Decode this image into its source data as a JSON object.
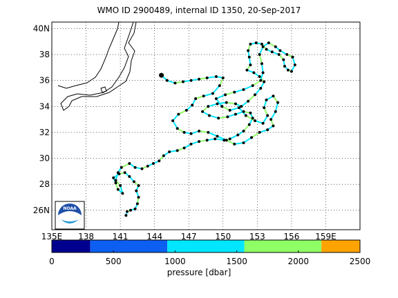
{
  "title": "WMO ID 2900489, internal ID 1350, 20-Sep-2017",
  "map": {
    "lon_range": [
      135,
      162
    ],
    "lat_range": [
      24.5,
      40.5
    ],
    "lon_ticks": [
      {
        "v": 135,
        "label": "135E"
      },
      {
        "v": 138,
        "label": "138"
      },
      {
        "v": 141,
        "label": "141"
      },
      {
        "v": 144,
        "label": "144"
      },
      {
        "v": 147,
        "label": "147"
      },
      {
        "v": 150,
        "label": "150"
      },
      {
        "v": 153,
        "label": "153"
      },
      {
        "v": 156,
        "label": "156"
      },
      {
        "v": 159,
        "label": "159E"
      }
    ],
    "lat_ticks": [
      {
        "v": 26,
        "label": "26N"
      },
      {
        "v": 28,
        "label": "28"
      },
      {
        "v": 30,
        "label": "30"
      },
      {
        "v": 32,
        "label": "32"
      },
      {
        "v": 34,
        "label": "34"
      },
      {
        "v": 36,
        "label": "36"
      },
      {
        "v": 38,
        "label": "38"
      },
      {
        "v": 40,
        "label": "40N"
      }
    ],
    "grid": true,
    "logo": "NOAA"
  },
  "colorbar": {
    "label": "pressure [dbar]",
    "range": [
      0,
      2500
    ],
    "tick_values": [
      0,
      500,
      1000,
      1500,
      2000,
      2500
    ],
    "segments": [
      {
        "from": 0,
        "to": 312,
        "color": "#00008f"
      },
      {
        "from": 312,
        "to": 937,
        "color": "#0d5ff2"
      },
      {
        "from": 937,
        "to": 1562,
        "color": "#00e6ff"
      },
      {
        "from": 1562,
        "to": 2187,
        "color": "#8fff66"
      },
      {
        "from": 2187,
        "to": 2500,
        "color": "#ffa300"
      }
    ]
  },
  "colors": {
    "track_primary": "#00e6ff",
    "track_secondary": "#8fff66",
    "marker": "#000000",
    "coast": "#000000"
  },
  "chart_data": {
    "type": "scatter",
    "x_axis": "longitude",
    "y_axis": "latitude",
    "xlim": [
      135,
      162
    ],
    "ylim": [
      24.5,
      40.5
    ],
    "track": [
      [
        141.5,
        25.6
      ],
      [
        141.6,
        25.9
      ],
      [
        141.9,
        26.0
      ],
      [
        142.3,
        26.1
      ],
      [
        142.5,
        26.5
      ],
      [
        142.6,
        27.0
      ],
      [
        142.4,
        27.5
      ],
      [
        142.6,
        27.9
      ],
      [
        142.2,
        28.2
      ],
      [
        141.8,
        28.6
      ],
      [
        141.4,
        28.9
      ],
      [
        140.9,
        28.8
      ],
      [
        140.4,
        28.5
      ],
      [
        140.6,
        28.1
      ],
      [
        140.8,
        27.6
      ],
      [
        141.2,
        27.3
      ],
      [
        141.0,
        27.9
      ],
      [
        140.6,
        28.3
      ],
      [
        140.8,
        28.9
      ],
      [
        141.1,
        29.3
      ],
      [
        141.8,
        29.6
      ],
      [
        142.3,
        29.3
      ],
      [
        142.9,
        29.2
      ],
      [
        143.4,
        29.4
      ],
      [
        143.9,
        29.6
      ],
      [
        144.4,
        29.8
      ],
      [
        144.8,
        30.2
      ],
      [
        145.3,
        30.5
      ],
      [
        146.0,
        30.6
      ],
      [
        146.6,
        30.8
      ],
      [
        147.2,
        31.1
      ],
      [
        147.9,
        31.3
      ],
      [
        148.6,
        31.4
      ],
      [
        149.3,
        31.5
      ],
      [
        150.1,
        31.4
      ],
      [
        150.6,
        31.5
      ],
      [
        151.3,
        31.8
      ],
      [
        151.8,
        32.1
      ],
      [
        152.3,
        32.6
      ],
      [
        152.6,
        33.1
      ],
      [
        152.4,
        33.5
      ],
      [
        151.8,
        33.6
      ],
      [
        151.1,
        33.4
      ],
      [
        150.4,
        33.2
      ],
      [
        149.6,
        33.1
      ],
      [
        148.8,
        33.3
      ],
      [
        148.2,
        33.6
      ],
      [
        148.7,
        34.0
      ],
      [
        149.5,
        34.2
      ],
      [
        150.3,
        34.3
      ],
      [
        151.1,
        34.2
      ],
      [
        151.6,
        34.0
      ],
      [
        152.2,
        34.4
      ],
      [
        152.8,
        34.9
      ],
      [
        153.3,
        35.4
      ],
      [
        153.6,
        35.9
      ],
      [
        153.2,
        36.3
      ],
      [
        152.7,
        36.6
      ],
      [
        152.1,
        36.8
      ],
      [
        152.4,
        37.2
      ],
      [
        152.3,
        37.8
      ],
      [
        152.2,
        38.3
      ],
      [
        152.4,
        38.8
      ],
      [
        152.9,
        38.9
      ],
      [
        153.4,
        38.8
      ],
      [
        153.8,
        38.4
      ],
      [
        154.3,
        38.2
      ],
      [
        154.9,
        38.0
      ],
      [
        155.3,
        37.6
      ],
      [
        155.4,
        37.1
      ],
      [
        155.7,
        36.8
      ],
      [
        156.0,
        36.7
      ],
      [
        156.3,
        37.2
      ],
      [
        156.1,
        37.8
      ],
      [
        155.6,
        38.0
      ],
      [
        155.0,
        38.3
      ],
      [
        154.6,
        38.6
      ],
      [
        154.0,
        38.9
      ],
      [
        153.5,
        38.6
      ],
      [
        153.2,
        38.0
      ],
      [
        153.4,
        37.3
      ],
      [
        153.5,
        36.6
      ],
      [
        153.3,
        36.0
      ],
      [
        152.6,
        35.6
      ],
      [
        151.8,
        35.3
      ],
      [
        151.0,
        35.1
      ],
      [
        150.2,
        34.9
      ],
      [
        149.4,
        34.6
      ],
      [
        149.9,
        34.0
      ],
      [
        150.6,
        33.7
      ],
      [
        151.4,
        33.9
      ],
      [
        152.0,
        33.3
      ],
      [
        152.8,
        32.9
      ],
      [
        153.5,
        32.7
      ],
      [
        153.9,
        33.3
      ],
      [
        153.6,
        33.9
      ],
      [
        153.8,
        34.5
      ],
      [
        154.4,
        34.8
      ],
      [
        154.8,
        34.3
      ],
      [
        154.6,
        33.6
      ],
      [
        154.2,
        33.0
      ],
      [
        154.4,
        32.5
      ],
      [
        153.9,
        32.2
      ],
      [
        153.2,
        32.0
      ],
      [
        152.5,
        31.6
      ],
      [
        151.8,
        31.2
      ],
      [
        151.0,
        31.1
      ],
      [
        150.3,
        31.4
      ],
      [
        149.5,
        31.7
      ],
      [
        148.7,
        32.0
      ],
      [
        147.9,
        32.1
      ],
      [
        147.2,
        31.9
      ],
      [
        146.6,
        32.0
      ],
      [
        146.0,
        32.3
      ],
      [
        145.6,
        32.9
      ],
      [
        146.1,
        33.4
      ],
      [
        146.8,
        33.7
      ],
      [
        147.3,
        34.1
      ],
      [
        147.6,
        34.6
      ],
      [
        148.3,
        34.8
      ],
      [
        149.1,
        35.0
      ],
      [
        149.7,
        35.6
      ],
      [
        150.0,
        36.2
      ],
      [
        149.4,
        36.3
      ],
      [
        148.6,
        36.2
      ],
      [
        147.9,
        36.1
      ],
      [
        147.2,
        36.0
      ],
      [
        146.5,
        35.9
      ],
      [
        145.8,
        35.8
      ],
      [
        145.1,
        36.0
      ],
      [
        144.6,
        36.4
      ]
    ]
  }
}
